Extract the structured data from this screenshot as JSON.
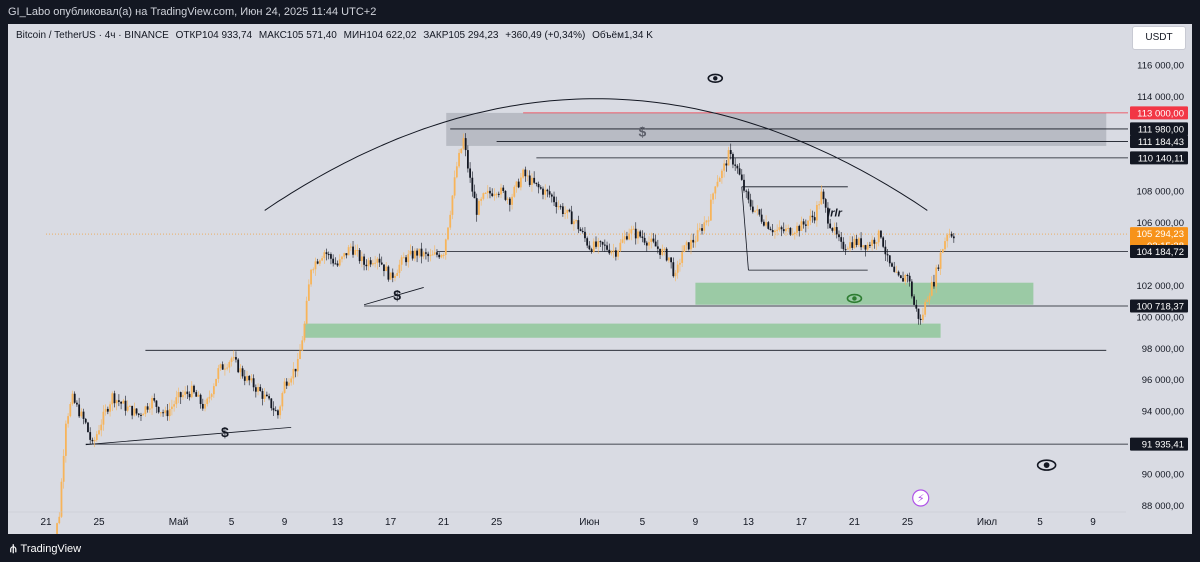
{
  "header": {
    "publisher_line": "GI_Labo опубликовал(а) на TradingView.com, Июн 24, 2025 11:44 UTC+2"
  },
  "legend": {
    "symbol": "Bitcoin / TetherUS · 4ч · BINANCE",
    "open": "ОТКР104 933,74",
    "high": "МАКС105 571,40",
    "low": "МИН104 622,02",
    "close": "ЗАКР105 294,23",
    "change": "+360,49 (+0,34%)",
    "volume": "Объём1,34 K"
  },
  "currency_button": "USDT",
  "footer": {
    "brand": "TradingView"
  },
  "chart_data": {
    "type": "candlestick",
    "price_scale": {
      "min": 88000,
      "max": 117000,
      "ticks": [
        {
          "value": 88000,
          "label": "88 000,00"
        },
        {
          "value": 90000,
          "label": "90 000,00"
        },
        {
          "value": 94000,
          "label": "94 000,00"
        },
        {
          "value": 96000,
          "label": "96 000,00"
        },
        {
          "value": 98000,
          "label": "98 000,00"
        },
        {
          "value": 100000,
          "label": "100 000,00"
        },
        {
          "value": 102000,
          "label": "102 000,00"
        },
        {
          "value": 106000,
          "label": "106 000,00"
        },
        {
          "value": 108000,
          "label": "108 000,00"
        },
        {
          "value": 114000,
          "label": "114 000,00"
        },
        {
          "value": 116000,
          "label": "116 000,00"
        }
      ]
    },
    "time_scale": {
      "start_day": 0,
      "end_day": 79,
      "ticks": [
        {
          "day": 0,
          "label": "21"
        },
        {
          "day": 4,
          "label": "25"
        },
        {
          "day": 10,
          "label": "Май"
        },
        {
          "day": 14,
          "label": "5"
        },
        {
          "day": 18,
          "label": "9"
        },
        {
          "day": 22,
          "label": "13"
        },
        {
          "day": 26,
          "label": "17"
        },
        {
          "day": 30,
          "label": "21"
        },
        {
          "day": 34,
          "label": "25"
        },
        {
          "day": 41,
          "label": "Июн"
        },
        {
          "day": 45,
          "label": "5"
        },
        {
          "day": 49,
          "label": "9"
        },
        {
          "day": 53,
          "label": "13"
        },
        {
          "day": 57,
          "label": "17"
        },
        {
          "day": 61,
          "label": "21"
        },
        {
          "day": 65,
          "label": "25"
        },
        {
          "day": 71,
          "label": "Июл"
        },
        {
          "day": 75,
          "label": "5"
        },
        {
          "day": 79,
          "label": "9"
        }
      ]
    },
    "price_path": [
      [
        0,
        85000
      ],
      [
        0.5,
        85400
      ],
      [
        1,
        87500
      ],
      [
        1.5,
        93500
      ],
      [
        2,
        94800
      ],
      [
        3,
        93200
      ],
      [
        3.5,
        91800
      ],
      [
        4,
        93000
      ],
      [
        5,
        95000
      ],
      [
        6,
        94300
      ],
      [
        7,
        93800
      ],
      [
        8,
        94700
      ],
      [
        9,
        93800
      ],
      [
        10,
        94900
      ],
      [
        11,
        95300
      ],
      [
        12,
        94200
      ],
      [
        13,
        96600
      ],
      [
        14,
        97400
      ],
      [
        15,
        96200
      ],
      [
        16,
        95400
      ],
      [
        17,
        94400
      ],
      [
        17.5,
        93800
      ],
      [
        18,
        95800
      ],
      [
        19,
        97000
      ],
      [
        19.5,
        99500
      ],
      [
        20,
        103200
      ],
      [
        21,
        104200
      ],
      [
        22,
        103300
      ],
      [
        23,
        104500
      ],
      [
        24,
        103400
      ],
      [
        25,
        103900
      ],
      [
        26,
        102500
      ],
      [
        27,
        103700
      ],
      [
        28,
        104100
      ],
      [
        29,
        103800
      ],
      [
        30,
        104200
      ],
      [
        30.5,
        106800
      ],
      [
        31,
        109600
      ],
      [
        31.5,
        111300
      ],
      [
        32,
        108700
      ],
      [
        32.5,
        106800
      ],
      [
        33,
        107600
      ],
      [
        34,
        108200
      ],
      [
        35,
        107500
      ],
      [
        36,
        109100
      ],
      [
        37,
        108300
      ],
      [
        38,
        107800
      ],
      [
        39,
        106800
      ],
      [
        40,
        106000
      ],
      [
        41,
        104500
      ],
      [
        42,
        104500
      ],
      [
        43,
        104200
      ],
      [
        44,
        105500
      ],
      [
        45,
        105100
      ],
      [
        46,
        104500
      ],
      [
        47,
        103800
      ],
      [
        47.5,
        102500
      ],
      [
        48,
        104200
      ],
      [
        49,
        105000
      ],
      [
        50,
        106500
      ],
      [
        50.5,
        108600
      ],
      [
        51,
        109200
      ],
      [
        51.5,
        110300
      ],
      [
        52,
        109800
      ],
      [
        53,
        107300
      ],
      [
        54,
        106300
      ],
      [
        55,
        105500
      ],
      [
        56,
        105500
      ],
      [
        57,
        105800
      ],
      [
        58,
        106500
      ],
      [
        58.5,
        107800
      ],
      [
        59,
        106300
      ],
      [
        60,
        104500
      ],
      [
        61,
        104800
      ],
      [
        62,
        104600
      ],
      [
        63,
        105300
      ],
      [
        63.5,
        103600
      ],
      [
        64,
        102700
      ],
      [
        64.5,
        102300
      ],
      [
        65,
        102800
      ],
      [
        65.5,
        100800
      ],
      [
        66,
        99700
      ],
      [
        66.5,
        101400
      ],
      [
        67,
        102300
      ],
      [
        67.5,
        104000
      ],
      [
        68,
        105400
      ],
      [
        68.5,
        105300
      ]
    ],
    "horizontal_levels": [
      {
        "price": 113000.0,
        "label": "113 000,00",
        "color": "#f23645",
        "text_color": "#ffffff"
      },
      {
        "price": 111980.0,
        "label": "111 980,00",
        "color": "#131722",
        "text_color": "#ffffff"
      },
      {
        "price": 111184.43,
        "label": "111 184,43",
        "color": "#131722",
        "text_color": "#ffffff"
      },
      {
        "price": 110140.11,
        "label": "110 140,11",
        "color": "#131722",
        "text_color": "#ffffff"
      },
      {
        "price": 105294.23,
        "label": "105 294,23",
        "sub_label": "02:15:38",
        "color": "#f7931a",
        "text_color": "#ffffff"
      },
      {
        "price": 104184.72,
        "label": "104 184,72",
        "color": "#131722",
        "text_color": "#ffffff"
      },
      {
        "price": 100718.37,
        "label": "100 718,37",
        "color": "#131722",
        "text_color": "#ffffff"
      },
      {
        "price": 91935.41,
        "label": "91 935,41",
        "color": "#131722",
        "text_color": "#ffffff"
      }
    ],
    "zones": [
      {
        "kind": "resistance",
        "color": "#b2b5be",
        "from_day": 30.2,
        "to_day": 80,
        "top": 113000,
        "bottom": 110900
      },
      {
        "kind": "support",
        "color": "#8fc79a",
        "from_day": 49,
        "to_day": 74.5,
        "top": 102200,
        "bottom": 100800
      },
      {
        "kind": "support",
        "color": "#8fc79a",
        "from_day": 19.5,
        "to_day": 67.5,
        "top": 99600,
        "bottom": 98700
      }
    ],
    "annotations": [
      {
        "text": "$",
        "day": 26.5,
        "price": 101100
      },
      {
        "text": "$",
        "day": 13.5,
        "price": 92400
      },
      {
        "text": "$",
        "day": 45,
        "price": 111500
      },
      {
        "text": "lrlr",
        "day": 59.5,
        "price": 106400
      }
    ]
  }
}
